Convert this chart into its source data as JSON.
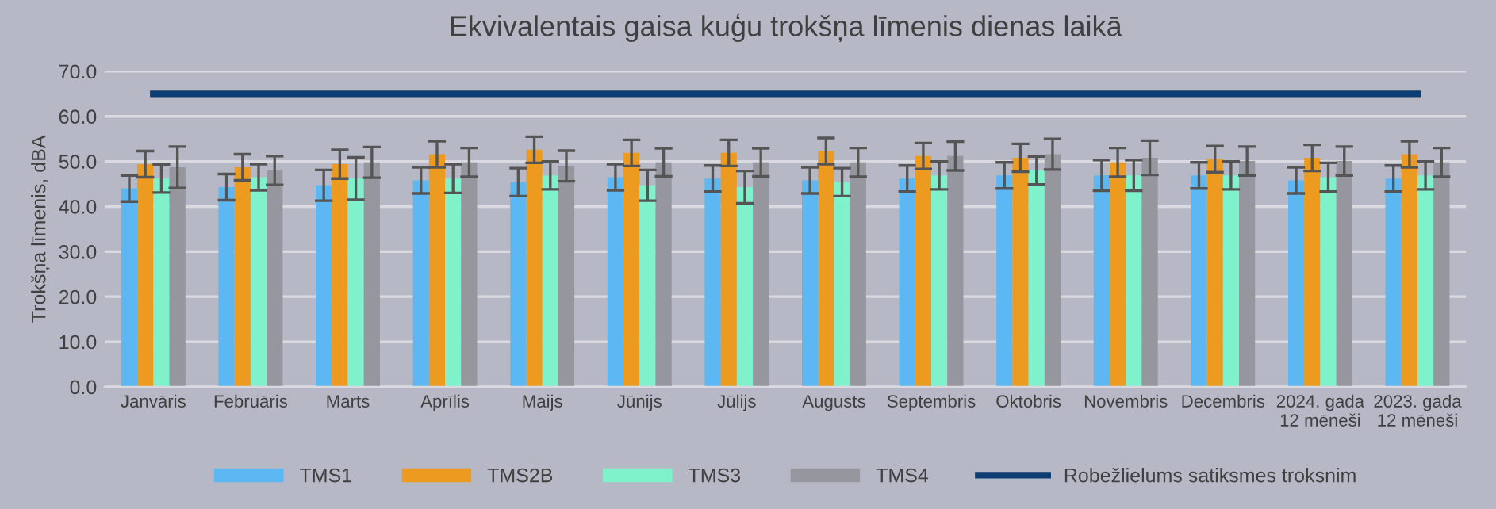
{
  "chart_data": {
    "type": "bar",
    "title": "Ekvivalentais gaisa kuģu trokšņa līmenis dienas laikā",
    "ylabel": "Trokšņa līmenis, dBA",
    "categories": [
      "Janvāris",
      "Februāris",
      "Marts",
      "Aprīlis",
      "Maijs",
      "Jūnijs",
      "Jūlijs",
      "Augusts",
      "Septembris",
      "Oktobris",
      "Novembris",
      "Decembris",
      "2024. gada\n12 mēneši",
      "2023. gada\n12 mēneši"
    ],
    "series": [
      {
        "name": "TMS1",
        "color": "#5db7f2",
        "values": [
          44.0,
          44.3,
          44.7,
          45.8,
          45.4,
          46.5,
          46.2,
          45.8,
          46.2,
          46.9,
          46.9,
          46.9,
          45.8,
          46.2
        ],
        "errors": [
          2.9,
          2.9,
          3.4,
          2.9,
          3.1,
          2.9,
          2.9,
          2.9,
          2.9,
          2.9,
          3.4,
          2.9,
          2.9,
          2.9
        ]
      },
      {
        "name": "TMS2B",
        "color": "#ec9b20",
        "values": [
          49.4,
          48.7,
          49.4,
          51.6,
          52.6,
          51.9,
          51.9,
          52.3,
          51.2,
          50.8,
          49.8,
          50.5,
          50.8,
          51.6
        ],
        "errors": [
          2.9,
          2.9,
          3.2,
          2.9,
          2.9,
          2.9,
          2.9,
          2.9,
          2.9,
          3.1,
          3.2,
          2.9,
          2.9,
          2.9
        ]
      },
      {
        "name": "TMS3",
        "color": "#7ff2cc",
        "values": [
          46.2,
          46.5,
          46.2,
          46.2,
          46.9,
          44.7,
          44.3,
          45.4,
          46.9,
          48.0,
          46.9,
          46.9,
          46.5,
          46.9
        ],
        "errors": [
          3.1,
          2.9,
          4.7,
          3.2,
          3.1,
          3.4,
          3.6,
          3.1,
          3.1,
          3.1,
          3.4,
          3.1,
          3.2,
          3.1
        ]
      },
      {
        "name": "TMS4",
        "color": "#96969f",
        "values": [
          48.7,
          48.0,
          49.8,
          49.8,
          49.0,
          49.8,
          49.8,
          49.8,
          51.2,
          51.6,
          50.8,
          50.1,
          50.1,
          49.8
        ],
        "errors": [
          4.6,
          3.2,
          3.4,
          3.2,
          3.4,
          3.1,
          3.1,
          3.2,
          3.2,
          3.4,
          3.8,
          3.2,
          3.2,
          3.2
        ]
      },
      {
        "name": "Robežlielums satiksmes troksnim",
        "type": "line",
        "color": "#0d3d73",
        "values": [
          65,
          65,
          65,
          65,
          65,
          65,
          65,
          65,
          65,
          65,
          65,
          65,
          65,
          65
        ]
      }
    ],
    "ylim": [
      0,
      70
    ],
    "yticks": [
      {
        "value": 0,
        "label": "0.0"
      },
      {
        "value": 10,
        "label": "10.0"
      },
      {
        "value": 20,
        "label": "20.0"
      },
      {
        "value": 30,
        "label": "30.0"
      },
      {
        "value": 40,
        "label": "40.0"
      },
      {
        "value": 50,
        "label": "50.0"
      },
      {
        "value": 60,
        "label": "60.0"
      },
      {
        "value": 70,
        "label": "70.0"
      }
    ],
    "grid": "y",
    "legend": "bottom"
  }
}
